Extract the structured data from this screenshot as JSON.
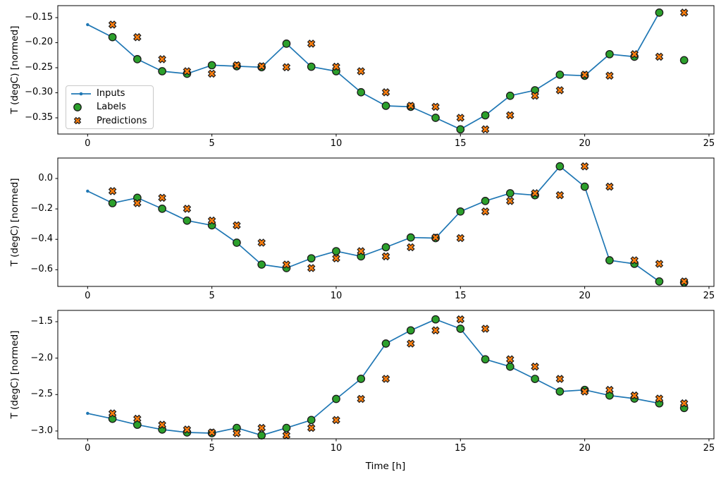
{
  "figure": {
    "description": "Matplotlib figure with three stacked time-series subplots comparing model inputs, labels and predictions",
    "background": "#ffffff"
  },
  "chart_data": {
    "type": "line",
    "xlabel": "Time [h]",
    "xlim": [
      -1.2,
      25.2
    ],
    "xticks": [
      0,
      5,
      10,
      15,
      20,
      25
    ],
    "xtick_labels": [
      "0",
      "5",
      "10",
      "15",
      "20",
      "25"
    ],
    "grid": false,
    "legend": {
      "position": "upper left of first subplot",
      "items": [
        {
          "label": "Inputs",
          "marker": "line-with-dot",
          "color": "#1f77b4"
        },
        {
          "label": "Labels",
          "marker": "filled-circle",
          "color": "#2ca02c"
        },
        {
          "label": "Predictions",
          "marker": "filled-x",
          "color": "#ff7f0e"
        }
      ]
    },
    "colors": {
      "inputs": "#1f77b4",
      "labels": "#2ca02c",
      "predictions": "#ff7f0e",
      "marker_edge": "#1a1a1a",
      "spine": "#000000"
    },
    "subplots": [
      {
        "ylabel": "T (degC) [normed]",
        "ylim": [
          -0.3824,
          -0.1261
        ],
        "yticks": [
          -0.15,
          -0.2,
          -0.25,
          -0.3,
          -0.35
        ],
        "ytick_labels": [
          "−0.15",
          "−0.20",
          "−0.25",
          "−0.30",
          "−0.35"
        ],
        "show_legend": true,
        "series": [
          {
            "name": "Inputs",
            "x": [
              0,
              1,
              2,
              3,
              4,
              5,
              6,
              7,
              8,
              9,
              10,
              11,
              12,
              13,
              14,
              15,
              16,
              17,
              18,
              19,
              20,
              21,
              22,
              23
            ],
            "y": [
              -0.164,
              -0.189,
              -0.233,
              -0.257,
              -0.262,
              -0.245,
              -0.247,
              -0.249,
              -0.202,
              -0.248,
              -0.257,
              -0.299,
              -0.326,
              -0.328,
              -0.35,
              -0.373,
              -0.345,
              -0.306,
              -0.295,
              -0.264,
              -0.266,
              -0.223,
              -0.228,
              -0.14
            ]
          },
          {
            "name": "Labels",
            "x": [
              1,
              2,
              3,
              4,
              5,
              6,
              7,
              8,
              9,
              10,
              11,
              12,
              13,
              14,
              15,
              16,
              17,
              18,
              19,
              20,
              21,
              22,
              23,
              24
            ],
            "y": [
              -0.189,
              -0.233,
              -0.257,
              -0.262,
              -0.245,
              -0.247,
              -0.249,
              -0.202,
              -0.248,
              -0.257,
              -0.299,
              -0.326,
              -0.328,
              -0.35,
              -0.373,
              -0.345,
              -0.306,
              -0.295,
              -0.264,
              -0.266,
              -0.223,
              -0.228,
              -0.14,
              -0.235
            ]
          },
          {
            "name": "Predictions",
            "x": [
              1,
              2,
              3,
              4,
              5,
              6,
              7,
              8,
              9,
              10,
              11,
              12,
              13,
              14,
              15,
              16,
              17,
              18,
              19,
              20,
              21,
              22,
              23,
              24
            ],
            "y": [
              -0.164,
              -0.189,
              -0.233,
              -0.257,
              -0.262,
              -0.245,
              -0.247,
              -0.249,
              -0.202,
              -0.248,
              -0.257,
              -0.299,
              -0.326,
              -0.328,
              -0.35,
              -0.373,
              -0.345,
              -0.306,
              -0.295,
              -0.264,
              -0.266,
              -0.223,
              -0.228,
              -0.14
            ]
          }
        ]
      },
      {
        "ylabel": "T (degC) [normed]",
        "ylim": [
          -0.7096,
          0.1345
        ],
        "yticks": [
          0.0,
          -0.2,
          -0.4,
          -0.6
        ],
        "ytick_labels": [
          "0.0",
          "−0.2",
          "−0.4",
          "−0.6"
        ],
        "show_legend": false,
        "series": [
          {
            "name": "Inputs",
            "x": [
              0,
              1,
              2,
              3,
              4,
              5,
              6,
              7,
              8,
              9,
              10,
              11,
              12,
              13,
              14,
              15,
              16,
              17,
              18,
              19,
              20,
              21,
              22,
              23
            ],
            "y": [
              -0.083,
              -0.162,
              -0.127,
              -0.199,
              -0.277,
              -0.308,
              -0.422,
              -0.566,
              -0.589,
              -0.525,
              -0.478,
              -0.512,
              -0.452,
              -0.388,
              -0.392,
              -0.217,
              -0.148,
              -0.097,
              -0.11,
              0.08,
              -0.054,
              -0.538,
              -0.561,
              -0.677
            ]
          },
          {
            "name": "Labels",
            "x": [
              1,
              2,
              3,
              4,
              5,
              6,
              7,
              8,
              9,
              10,
              11,
              12,
              13,
              14,
              15,
              16,
              17,
              18,
              19,
              20,
              21,
              22,
              23,
              24
            ],
            "y": [
              -0.162,
              -0.127,
              -0.199,
              -0.277,
              -0.308,
              -0.422,
              -0.566,
              -0.589,
              -0.525,
              -0.478,
              -0.512,
              -0.452,
              -0.388,
              -0.392,
              -0.217,
              -0.148,
              -0.097,
              -0.11,
              0.08,
              -0.054,
              -0.538,
              -0.561,
              -0.677,
              -0.684
            ]
          },
          {
            "name": "Predictions",
            "x": [
              1,
              2,
              3,
              4,
              5,
              6,
              7,
              8,
              9,
              10,
              11,
              12,
              13,
              14,
              15,
              16,
              17,
              18,
              19,
              20,
              21,
              22,
              23,
              24
            ],
            "y": [
              -0.083,
              -0.162,
              -0.127,
              -0.199,
              -0.277,
              -0.308,
              -0.422,
              -0.566,
              -0.589,
              -0.525,
              -0.478,
              -0.512,
              -0.452,
              -0.388,
              -0.392,
              -0.217,
              -0.148,
              -0.097,
              -0.11,
              0.08,
              -0.054,
              -0.538,
              -0.561,
              -0.677
            ]
          }
        ]
      },
      {
        "ylabel": "T (degC) [normed]",
        "ylim": [
          -3.107,
          -1.345
        ],
        "yticks": [
          -1.5,
          -2.0,
          -2.5,
          -3.0
        ],
        "ytick_labels": [
          "−1.5",
          "−2.0",
          "−2.5",
          "−3.0"
        ],
        "show_legend": false,
        "series": [
          {
            "name": "Inputs",
            "x": [
              0,
              1,
              2,
              3,
              4,
              5,
              6,
              7,
              8,
              9,
              10,
              11,
              12,
              13,
              14,
              15,
              16,
              17,
              18,
              19,
              20,
              21,
              22,
              23
            ],
            "y": [
              -2.758,
              -2.832,
              -2.914,
              -2.98,
              -3.02,
              -3.03,
              -2.958,
              -3.06,
              -2.958,
              -2.849,
              -2.56,
              -2.284,
              -1.8,
              -1.619,
              -1.468,
              -1.597,
              -2.016,
              -2.117,
              -2.285,
              -2.458,
              -2.436,
              -2.513,
              -2.555,
              -2.62
            ]
          },
          {
            "name": "Labels",
            "x": [
              1,
              2,
              3,
              4,
              5,
              6,
              7,
              8,
              9,
              10,
              11,
              12,
              13,
              14,
              15,
              16,
              17,
              18,
              19,
              20,
              21,
              22,
              23,
              24
            ],
            "y": [
              -2.832,
              -2.914,
              -2.98,
              -3.02,
              -3.03,
              -2.958,
              -3.06,
              -2.958,
              -2.849,
              -2.56,
              -2.284,
              -1.8,
              -1.619,
              -1.468,
              -1.597,
              -2.016,
              -2.117,
              -2.285,
              -2.458,
              -2.436,
              -2.513,
              -2.555,
              -2.62,
              -2.684
            ]
          },
          {
            "name": "Predictions",
            "x": [
              1,
              2,
              3,
              4,
              5,
              6,
              7,
              8,
              9,
              10,
              11,
              12,
              13,
              14,
              15,
              16,
              17,
              18,
              19,
              20,
              21,
              22,
              23,
              24
            ],
            "y": [
              -2.758,
              -2.832,
              -2.914,
              -2.98,
              -3.02,
              -3.03,
              -2.958,
              -3.06,
              -2.958,
              -2.849,
              -2.56,
              -2.284,
              -1.8,
              -1.619,
              -1.468,
              -1.597,
              -2.016,
              -2.117,
              -2.285,
              -2.458,
              -2.436,
              -2.513,
              -2.555,
              -2.62
            ]
          }
        ]
      }
    ]
  }
}
